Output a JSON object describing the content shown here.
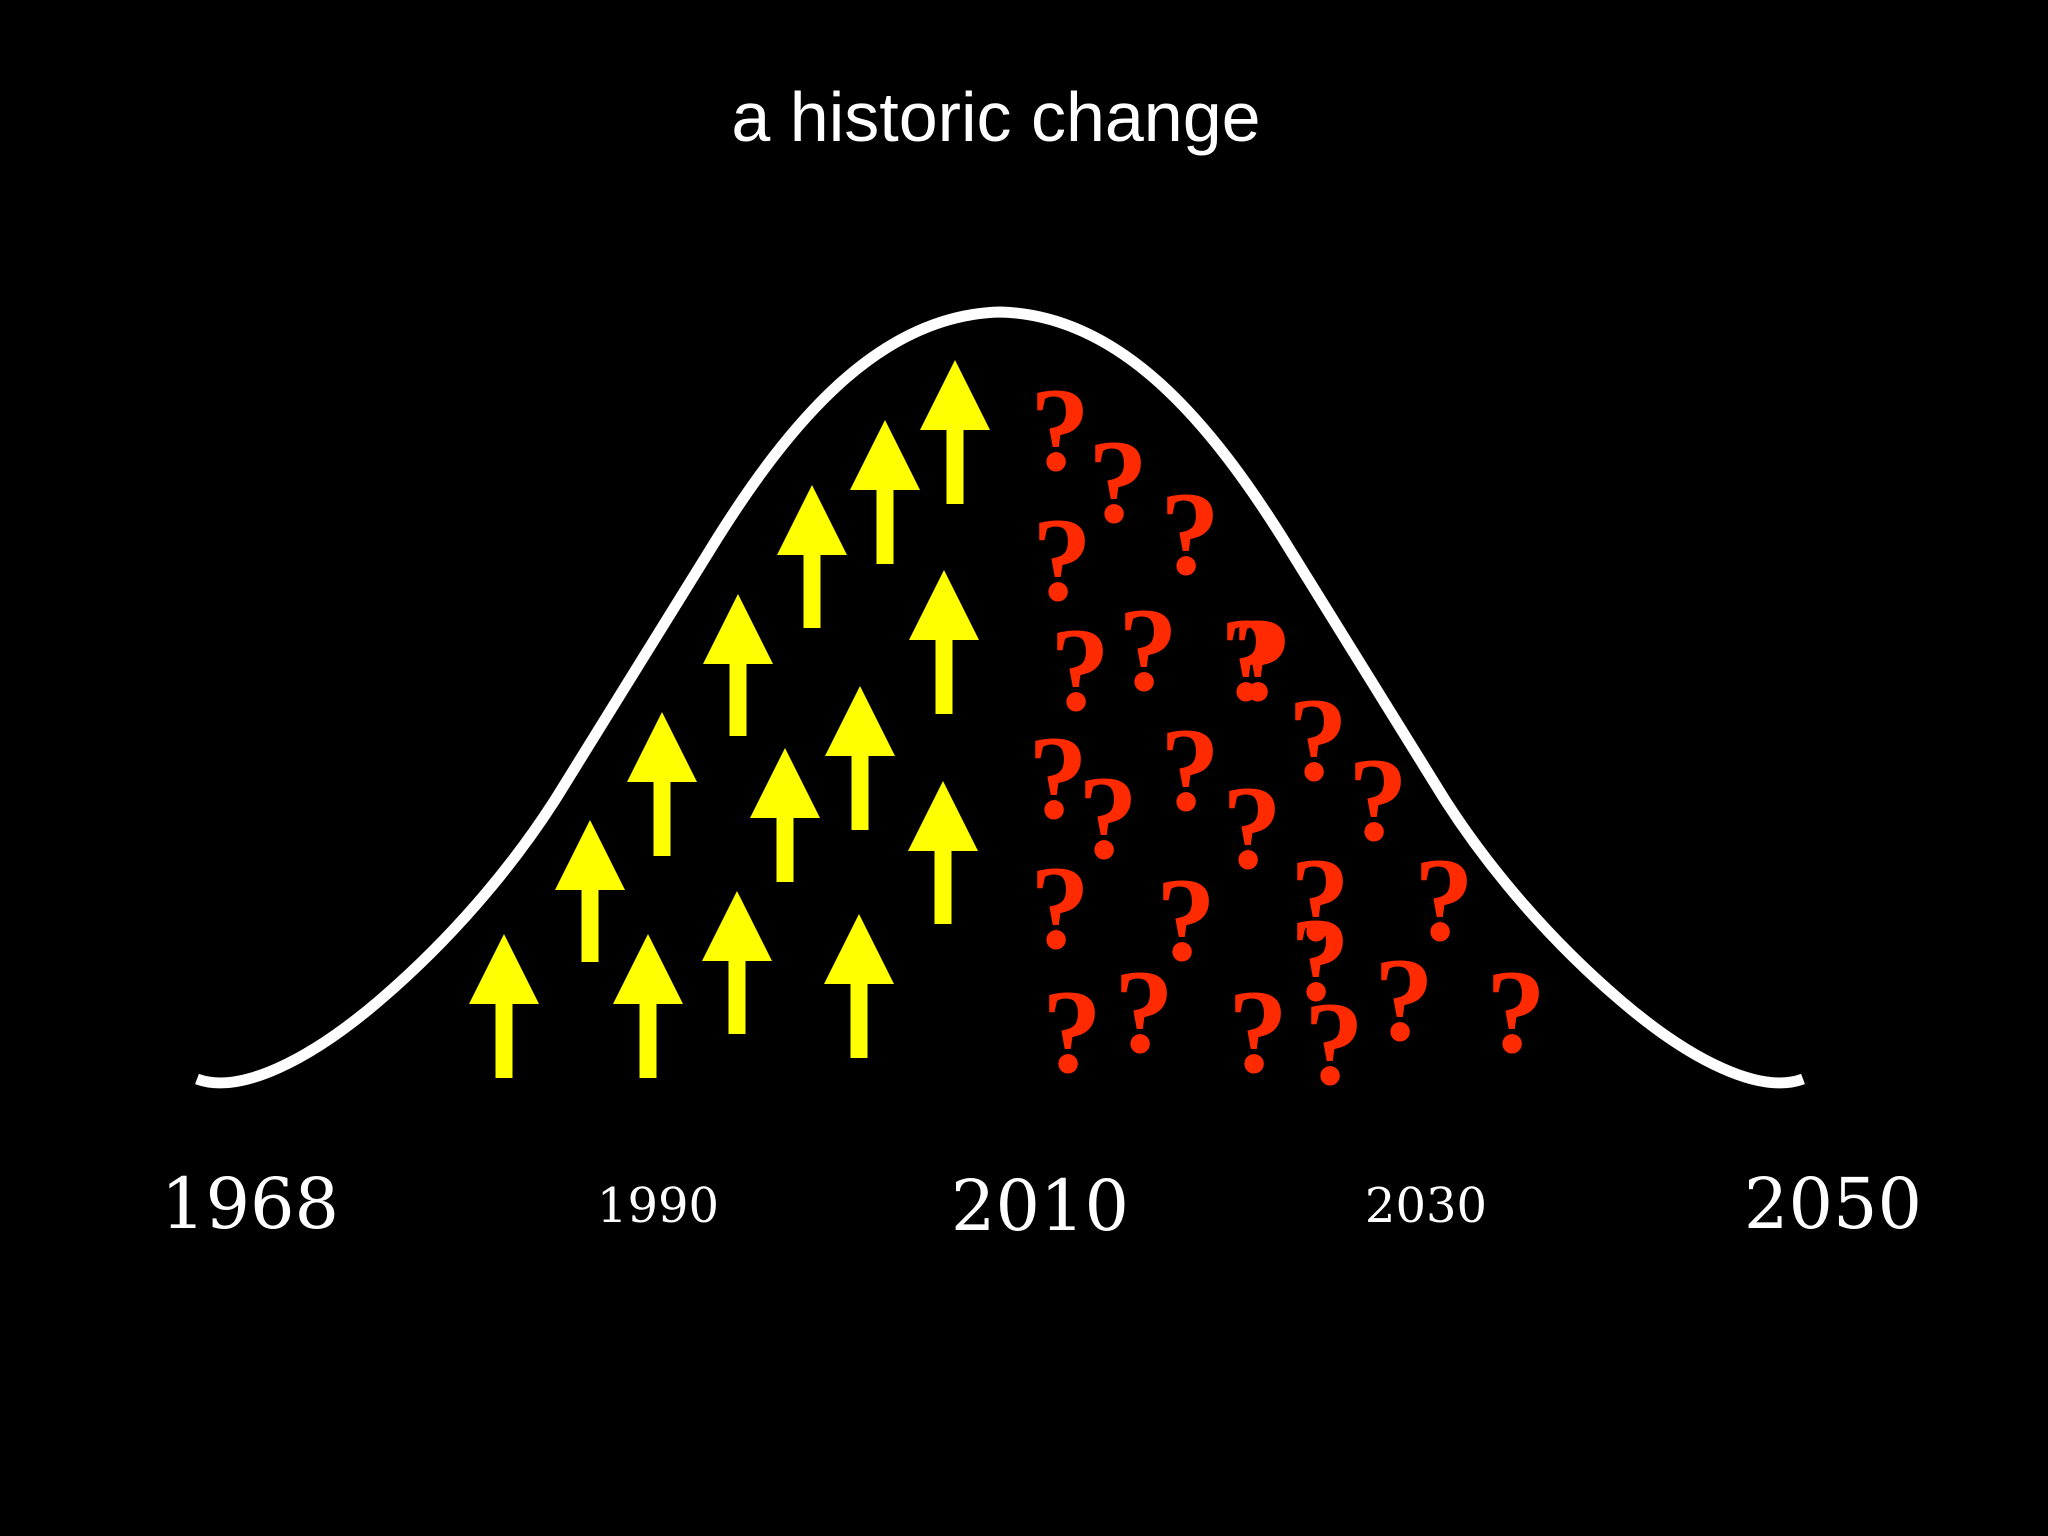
{
  "slide": {
    "title": "a historic change"
  },
  "colors": {
    "background": "#000000",
    "curve": "#ffffff",
    "arrow": "#ffff00",
    "question": "#ff2a00",
    "text": "#ffffff"
  },
  "timeline": {
    "labels": [
      "1968",
      "1990",
      "2010",
      "2030",
      "2050"
    ]
  },
  "question_glyph": "?",
  "arrow_count": 16,
  "question_count": 25
}
